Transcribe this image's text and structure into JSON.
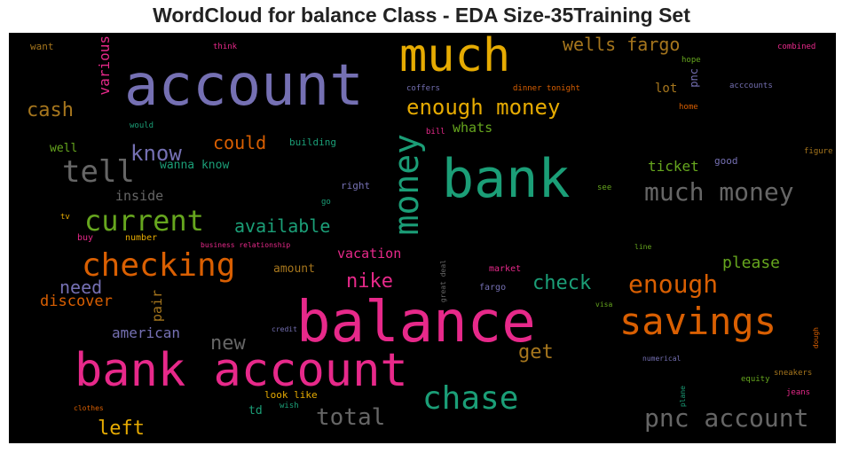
{
  "title": "WordCloud for balance Class - EDA Size-35Training Set",
  "colors": {
    "purple": "#7570b3",
    "teal": "#1b9e77",
    "orange": "#d95f02",
    "magenta": "#e7298a",
    "gold": "#e6ab02",
    "green": "#66a61e",
    "brown": "#a6761d",
    "gray": "#666666"
  },
  "words": {
    "account": "account",
    "much": "much",
    "bank": "bank",
    "money": "money",
    "balance": "balance",
    "bank_account": "bank account",
    "savings": "savings",
    "checking": "checking",
    "current": "current",
    "tell": "tell",
    "chase": "chase",
    "enough_money": "enough money",
    "much_money": "much money",
    "pnc_account": "pnc account",
    "enough": "enough",
    "wells_fargo": "wells fargo",
    "cash": "cash",
    "know": "know",
    "could": "could",
    "check": "check",
    "nike": "nike",
    "total": "total",
    "left": "left",
    "available": "available",
    "new": "new",
    "need": "need",
    "get": "get",
    "please": "please",
    "discover": "discover",
    "american": "american",
    "ticket": "ticket",
    "various": "various",
    "whats": "whats",
    "pair": "pair",
    "inside": "inside",
    "wanna_know": "wanna know",
    "vacation": "vacation",
    "lot": "lot",
    "pnc": "pnc",
    "well": "well",
    "td": "td",
    "amount": "amount",
    "want": "want",
    "think": "think",
    "combined": "combined",
    "hope": "hope",
    "coffers": "coffers",
    "dinner_tonight": "dinner tonight",
    "acccounts": "acccounts",
    "home": "home",
    "would": "would",
    "bill": "bill",
    "building": "building",
    "figure": "figure",
    "good": "good",
    "see": "see",
    "right": "right",
    "go": "go",
    "tv": "tv",
    "buy": "buy",
    "number": "number",
    "business_relationship": "business relationship",
    "line": "line",
    "great_deal": "great deal",
    "market": "market",
    "fargo": "fargo",
    "visa": "visa",
    "credit": "credit",
    "dough": "dough",
    "numerical": "numerical",
    "sneakers": "sneakers",
    "equity": "equity",
    "jeans": "jeans",
    "plane": "plane",
    "look_like": "look like",
    "wish": "wish",
    "clothes": "clothes"
  }
}
